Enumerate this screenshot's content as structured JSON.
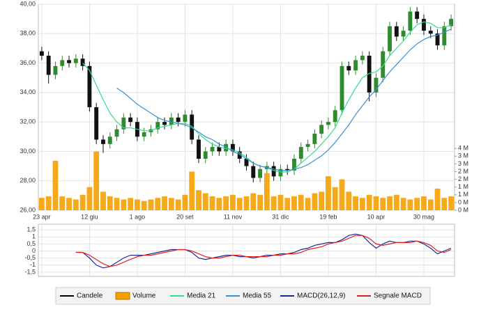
{
  "chart_data": [
    {
      "type": "candlestick",
      "categories": [
        "23 apr",
        null,
        null,
        null,
        null,
        null,
        null,
        "12 giu",
        null,
        null,
        null,
        null,
        null,
        null,
        "1 ago",
        null,
        null,
        null,
        null,
        null,
        null,
        "20 set",
        null,
        null,
        null,
        null,
        null,
        null,
        "11 nov",
        null,
        null,
        null,
        null,
        null,
        null,
        "31 dic",
        null,
        null,
        null,
        null,
        null,
        null,
        "19 feb",
        null,
        null,
        null,
        null,
        null,
        null,
        "10 apr",
        null,
        null,
        null,
        null,
        null,
        null,
        "30 mag",
        null,
        null,
        null,
        null
      ],
      "ylim": [
        26,
        40
      ],
      "yticks": [
        {
          "value": 26,
          "label": "26,00"
        },
        {
          "value": 28,
          "label": "28,00"
        },
        {
          "value": 30,
          "label": "30,00"
        },
        {
          "value": 32,
          "label": "32,00"
        },
        {
          "value": 34,
          "label": "34,00"
        },
        {
          "value": 36,
          "label": "36,00"
        },
        {
          "value": 38,
          "label": "38,00"
        },
        {
          "value": 40,
          "label": "40,00"
        }
      ],
      "y2lim": [
        0,
        4
      ],
      "y2ticks": [
        {
          "value": 0,
          "label": "0 M"
        },
        {
          "value": 0.5,
          "label": "0 M"
        },
        {
          "value": 1,
          "label": "1 M"
        },
        {
          "value": 1.5,
          "label": "1 M"
        },
        {
          "value": 2,
          "label": "2 M"
        },
        {
          "value": 2.5,
          "label": "2 M"
        },
        {
          "value": 3,
          "label": "3 M"
        },
        {
          "value": 3.5,
          "label": "3 M"
        },
        {
          "value": 4,
          "label": "4 M"
        }
      ],
      "grid": true,
      "series": [
        {
          "name": "Candele",
          "color": "#000000",
          "up_color": "#2e8b2e",
          "down_color": "#111111",
          "open": [
            36.8,
            36.5,
            35.2,
            35.8,
            36.2,
            36.0,
            36.3,
            35.8,
            33.0,
            30.8,
            30.5,
            31.0,
            31.5,
            32.3,
            32.0,
            31.0,
            31.3,
            31.5,
            32.0,
            31.8,
            32.3,
            32.0,
            32.5,
            30.8,
            29.5,
            30.0,
            30.3,
            30.0,
            30.5,
            30.0,
            29.5,
            29.0,
            28.2,
            28.8,
            29.0,
            28.3,
            28.8,
            28.7,
            29.5,
            30.3,
            30.5,
            31.2,
            31.8,
            32.0,
            32.8,
            35.8,
            35.5,
            36.2,
            36.5,
            34.0,
            35.0,
            36.8,
            38.5,
            37.8,
            38.2,
            39.5,
            39.0,
            38.2,
            38.0,
            37.2,
            38.5
          ],
          "high": [
            37.1,
            36.8,
            36.1,
            36.5,
            36.5,
            36.6,
            36.6,
            36.1,
            33.3,
            31.1,
            31.3,
            31.8,
            32.6,
            32.6,
            32.3,
            31.6,
            31.8,
            32.3,
            32.3,
            32.6,
            32.6,
            32.8,
            32.8,
            31.1,
            30.3,
            30.6,
            30.6,
            30.8,
            30.8,
            30.3,
            29.8,
            29.3,
            29.1,
            29.3,
            29.3,
            29.1,
            29.1,
            29.8,
            30.6,
            30.8,
            31.5,
            32.1,
            32.3,
            33.1,
            36.1,
            36.1,
            36.5,
            36.8,
            36.8,
            35.3,
            37.1,
            38.8,
            38.8,
            38.5,
            39.8,
            39.8,
            39.3,
            38.5,
            38.3,
            38.8,
            39.3
          ],
          "low": [
            36.2,
            34.6,
            34.9,
            35.5,
            35.7,
            35.7,
            35.5,
            32.7,
            30.5,
            29.9,
            30.2,
            30.7,
            31.2,
            31.7,
            30.7,
            30.7,
            31.0,
            31.2,
            31.5,
            31.5,
            31.7,
            31.7,
            30.5,
            29.2,
            29.2,
            29.7,
            29.7,
            29.7,
            29.7,
            29.2,
            28.7,
            27.9,
            27.9,
            28.5,
            28.0,
            28.0,
            28.4,
            28.4,
            29.2,
            30.0,
            30.2,
            30.9,
            31.5,
            31.7,
            32.5,
            35.2,
            35.2,
            35.9,
            33.4,
            33.7,
            34.7,
            36.5,
            37.5,
            37.5,
            37.9,
            38.7,
            37.9,
            37.7,
            36.9,
            36.9,
            38.2
          ],
          "close": [
            36.5,
            35.2,
            35.8,
            36.2,
            36.0,
            36.3,
            35.8,
            33.0,
            30.8,
            30.5,
            31.0,
            31.5,
            32.3,
            32.0,
            31.0,
            31.3,
            31.5,
            32.0,
            31.8,
            32.3,
            32.0,
            32.5,
            30.8,
            29.5,
            30.0,
            30.3,
            30.0,
            30.5,
            30.0,
            29.5,
            29.0,
            28.2,
            28.8,
            29.0,
            28.3,
            28.8,
            28.7,
            29.5,
            30.3,
            30.5,
            31.2,
            31.8,
            32.0,
            32.8,
            35.8,
            35.5,
            36.2,
            36.5,
            34.0,
            35.0,
            36.8,
            38.5,
            37.8,
            38.2,
            39.5,
            39.0,
            38.2,
            38.0,
            37.2,
            38.5,
            39.0
          ]
        },
        {
          "name": "Volume",
          "color": "#f5a000",
          "axis": "y2",
          "values": [
            0.8,
            0.9,
            3.2,
            0.9,
            0.8,
            0.7,
            1.0,
            1.5,
            3.8,
            1.2,
            0.9,
            0.8,
            0.7,
            0.8,
            0.7,
            0.6,
            0.7,
            0.8,
            0.9,
            0.8,
            0.7,
            1.0,
            2.5,
            1.3,
            1.1,
            0.9,
            0.8,
            0.9,
            1.0,
            0.8,
            0.9,
            1.1,
            1.0,
            2.4,
            0.9,
            1.0,
            0.8,
            0.9,
            1.0,
            0.8,
            1.1,
            1.2,
            2.2,
            1.5,
            2.0,
            1.2,
            0.9,
            0.8,
            1.0,
            0.9,
            0.8,
            0.9,
            1.0,
            0.8,
            0.7,
            0.8,
            0.9,
            0.7,
            1.4,
            0.8,
            0.9
          ]
        },
        {
          "name": "Media 21",
          "color": "#33dd88",
          "values": [
            null,
            null,
            null,
            null,
            null,
            null,
            36.0,
            35.5,
            34.5,
            33.5,
            32.6,
            32.0,
            31.6,
            31.6,
            31.5,
            31.4,
            31.4,
            31.6,
            31.7,
            31.8,
            31.9,
            31.9,
            31.7,
            31.2,
            30.8,
            30.5,
            30.3,
            30.2,
            30.1,
            29.9,
            29.6,
            29.2,
            29.0,
            28.9,
            28.7,
            28.6,
            28.6,
            28.8,
            29.2,
            29.6,
            30.0,
            30.5,
            31.0,
            31.6,
            32.6,
            33.5,
            34.3,
            35.0,
            35.3,
            35.4,
            35.8,
            36.5,
            37.0,
            37.5,
            38.1,
            38.6,
            38.8,
            38.7,
            38.4,
            38.4,
            38.6
          ]
        },
        {
          "name": "Media 55",
          "color": "#3a8fd8",
          "values": [
            null,
            null,
            null,
            null,
            null,
            null,
            null,
            null,
            null,
            null,
            null,
            34.3,
            34.0,
            33.6,
            33.2,
            32.9,
            32.6,
            32.3,
            32.1,
            32.0,
            31.9,
            31.8,
            31.6,
            31.3,
            31.0,
            30.8,
            30.5,
            30.3,
            30.0,
            29.8,
            29.5,
            29.2,
            29.0,
            28.9,
            28.8,
            28.7,
            28.7,
            28.8,
            28.9,
            29.1,
            29.4,
            29.7,
            30.1,
            30.6,
            31.2,
            31.8,
            32.5,
            33.1,
            33.7,
            34.2,
            34.8,
            35.4,
            35.9,
            36.4,
            36.9,
            37.3,
            37.6,
            37.8,
            37.9,
            38.1,
            38.3
          ]
        }
      ]
    },
    {
      "type": "line",
      "ylim": [
        -1.8,
        1.9
      ],
      "yticks": [
        {
          "value": -1.5,
          "label": "-1,5"
        },
        -1,
        {
          "value": -0.5,
          "label": "-0,5"
        },
        0,
        {
          "value": 0.5,
          "label": "0,5"
        },
        1,
        {
          "value": 1.5,
          "label": "1,5"
        }
      ],
      "grid": true,
      "series": [
        {
          "name": "MACD(26,12,9)",
          "color": "#1a2a9a",
          "values": [
            null,
            null,
            null,
            null,
            null,
            -0.1,
            -0.1,
            -0.5,
            -1.0,
            -1.2,
            -1.1,
            -0.8,
            -0.5,
            -0.3,
            -0.3,
            -0.3,
            -0.2,
            -0.1,
            0.0,
            0.1,
            0.1,
            0.1,
            -0.1,
            -0.5,
            -0.6,
            -0.5,
            -0.4,
            -0.3,
            -0.3,
            -0.4,
            -0.4,
            -0.5,
            -0.4,
            -0.3,
            -0.3,
            -0.2,
            -0.2,
            -0.1,
            0.1,
            0.2,
            0.4,
            0.5,
            0.6,
            0.6,
            0.8,
            1.1,
            1.2,
            1.1,
            0.6,
            0.2,
            0.5,
            0.7,
            0.6,
            0.6,
            0.7,
            0.7,
            0.5,
            0.2,
            -0.2,
            0.0,
            0.2
          ]
        },
        {
          "name": "Segnale MACD",
          "color": "#dd2222",
          "values": [
            null,
            null,
            null,
            null,
            null,
            -0.1,
            -0.1,
            -0.3,
            -0.6,
            -0.9,
            -1.1,
            -1.0,
            -0.8,
            -0.6,
            -0.4,
            -0.3,
            -0.3,
            -0.2,
            -0.1,
            0.0,
            0.1,
            0.1,
            0.0,
            -0.2,
            -0.4,
            -0.5,
            -0.5,
            -0.4,
            -0.3,
            -0.3,
            -0.4,
            -0.4,
            -0.4,
            -0.4,
            -0.3,
            -0.3,
            -0.2,
            -0.2,
            -0.1,
            0.1,
            0.2,
            0.3,
            0.5,
            0.6,
            0.7,
            0.9,
            1.1,
            1.1,
            0.9,
            0.5,
            0.4,
            0.5,
            0.6,
            0.6,
            0.6,
            0.7,
            0.6,
            0.4,
            0.0,
            -0.1,
            0.1
          ]
        }
      ]
    }
  ]
}
